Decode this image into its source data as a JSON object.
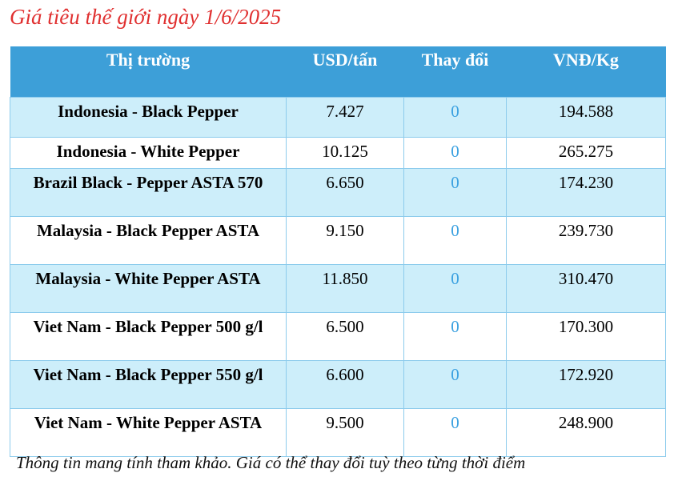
{
  "title": "Giá tiêu thế giới ngày 1/6/2025",
  "colors": {
    "title": "#e03030",
    "header": "#3d9fd8",
    "row_alt": "#cdeefa",
    "change": "#3aa0e0"
  },
  "table": {
    "headers": [
      "Thị trường",
      "USD/tấn",
      "Thay đổi",
      "VNĐ/Kg"
    ],
    "rows": [
      [
        "Indonesia - Black Pepper",
        "7.427",
        "0",
        "194.588"
      ],
      [
        "Indonesia - White Pepper",
        "10.125",
        "0",
        "265.275"
      ],
      [
        "Brazil Black - Pepper ASTA 570",
        "6.650",
        "0",
        "174.230"
      ],
      [
        "Malaysia - Black Pepper ASTA",
        "9.150",
        "0",
        "239.730"
      ],
      [
        "Malaysia - White Pepper ASTA",
        "11.850",
        "0",
        "310.470"
      ],
      [
        "Viet Nam - Black Pepper 500 g/l",
        "6.500",
        "0",
        "170.300"
      ],
      [
        "Viet Nam - Black Pepper 550 g/l",
        "6.600",
        "0",
        "172.920"
      ],
      [
        "Viet Nam - White Pepper ASTA",
        "9.500",
        "0",
        "248.900"
      ]
    ]
  },
  "footer": "Thông tin mang tính tham khảo. Giá có thể thay đổi tuỳ theo từng thời điểm"
}
